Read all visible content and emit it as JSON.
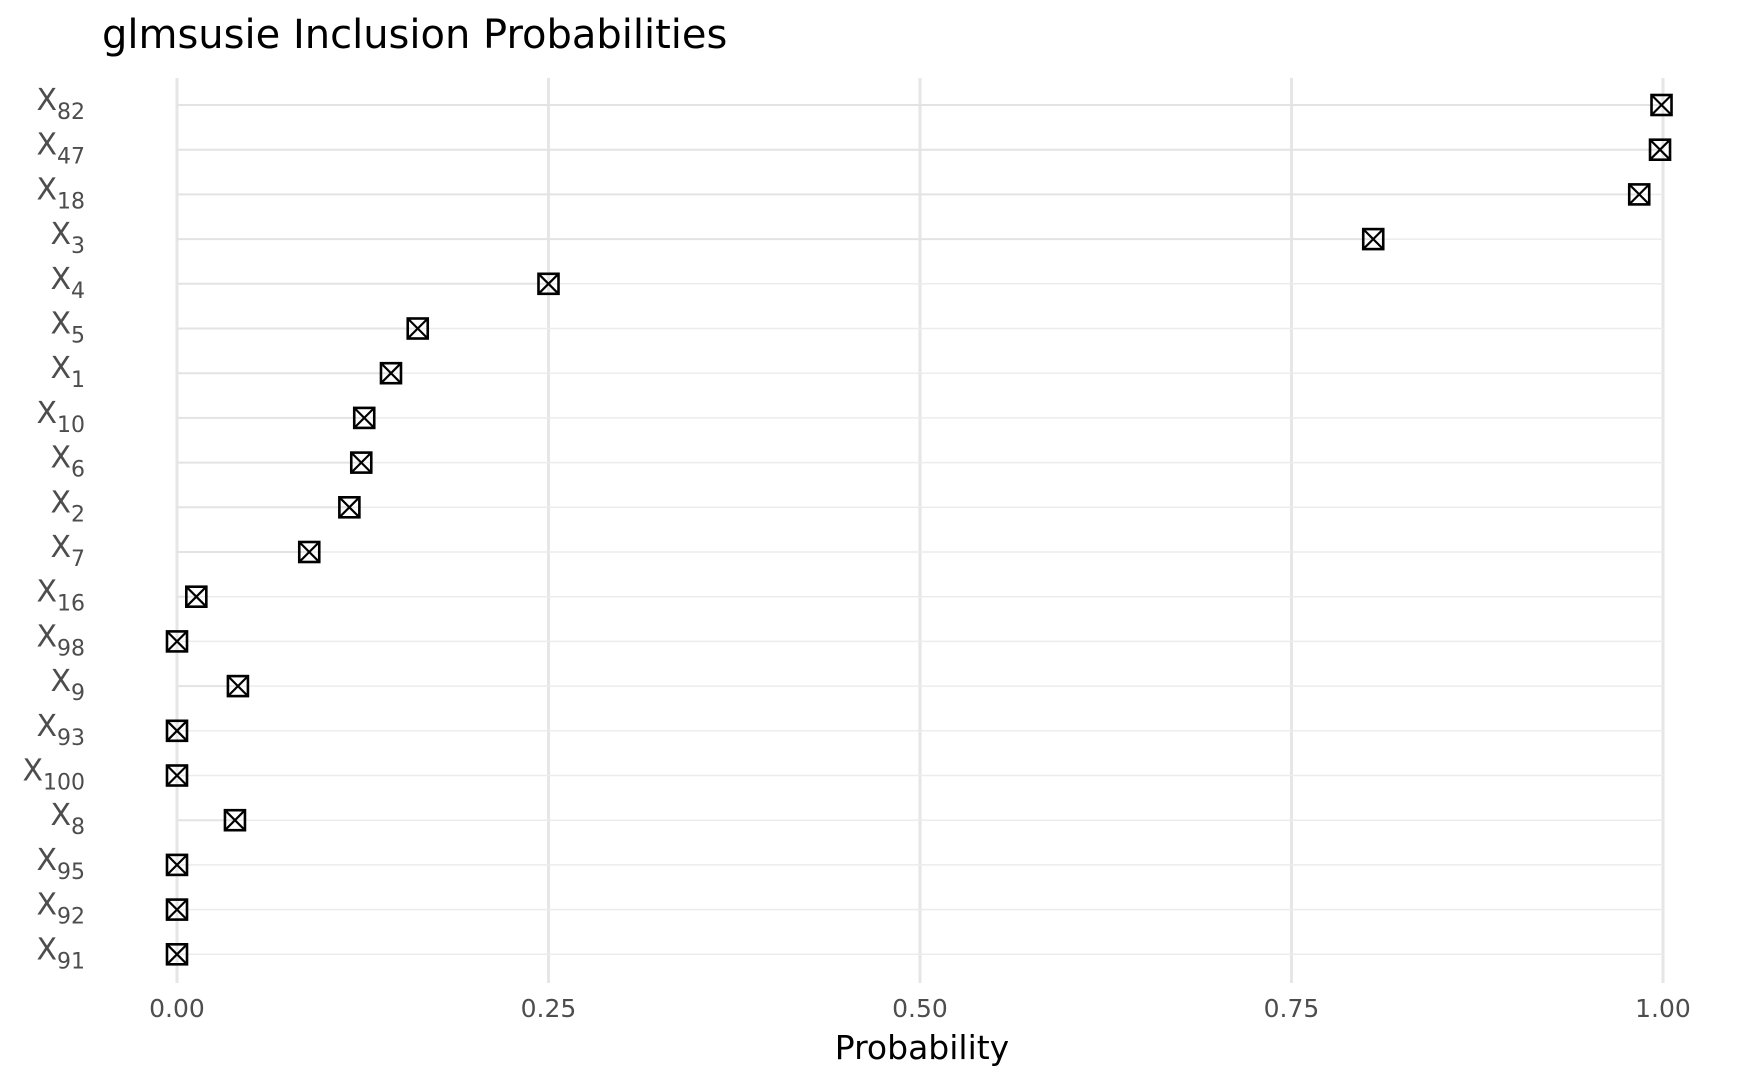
{
  "chart_data": {
    "type": "scatter",
    "title": "glmsusie Inclusion Probabilities",
    "xlabel": "Probability",
    "ylabel": "",
    "xlim": [
      0,
      1
    ],
    "x_ticks": [
      "0.00",
      "0.25",
      "0.50",
      "0.75",
      "1.00"
    ],
    "x_tick_values": [
      0,
      0.25,
      0.5,
      0.75,
      1.0
    ],
    "grid": true,
    "legend": "none",
    "marker": "boxed-x",
    "point_color": "#000000",
    "gridline_color": "#e6e6e6",
    "variable_prefix": "X",
    "categories": [
      "82",
      "47",
      "18",
      "3",
      "4",
      "5",
      "1",
      "10",
      "6",
      "2",
      "7",
      "16",
      "98",
      "9",
      "93",
      "100",
      "8",
      "95",
      "92",
      "91"
    ],
    "values": [
      0.999,
      0.998,
      0.984,
      0.805,
      0.25,
      0.162,
      0.144,
      0.126,
      0.124,
      0.116,
      0.089,
      0.013,
      0.0,
      0.041,
      0.0,
      0.0,
      0.039,
      0.0,
      0.0,
      0.0
    ]
  }
}
